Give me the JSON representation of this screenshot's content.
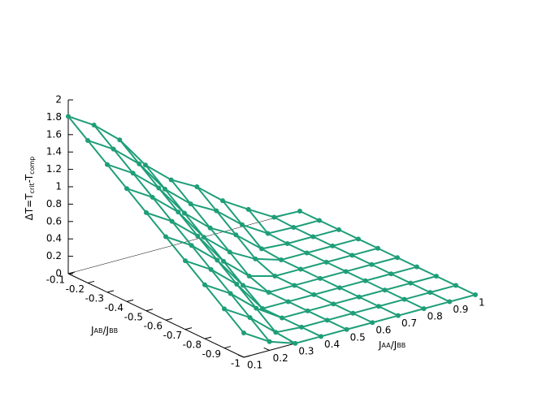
{
  "chart_data": {
    "type": "surface3d",
    "xlabel": [
      "J",
      "AA",
      "/J",
      "BB"
    ],
    "ylabel": [
      "J",
      "AB",
      "/J",
      "BB"
    ],
    "zlabel": [
      "ΔT=T",
      "crit",
      "-T",
      "comp"
    ],
    "color": "#1e9e78",
    "x": [
      0.1,
      0.2,
      0.3,
      0.4,
      0.5,
      0.6,
      0.7,
      0.8,
      0.9,
      1
    ],
    "y": [
      -0.1,
      -0.2,
      -0.3,
      -0.4,
      -0.5,
      -0.6,
      -0.7,
      -0.8,
      -0.9,
      -1
    ],
    "z": [
      [
        1.81,
        1.63,
        1.38,
        1.01,
        0.76,
        0.6,
        0.36,
        0.18,
        0.01,
        0
      ],
      [
        1.64,
        1.46,
        1.21,
        0.84,
        0.59,
        0.43,
        0.19,
        0.01,
        0,
        0
      ],
      [
        1.47,
        1.29,
        1.04,
        0.67,
        0.42,
        0.26,
        0.02,
        0,
        0,
        0
      ],
      [
        1.3,
        1.12,
        0.87,
        0.5,
        0.25,
        0.09,
        0,
        0,
        0,
        0
      ],
      [
        1.13,
        0.95,
        0.7,
        0.33,
        0.08,
        0,
        0,
        0,
        0,
        0
      ],
      [
        0.96,
        0.78,
        0.53,
        0.16,
        0,
        0,
        0,
        0,
        0,
        0
      ],
      [
        0.79,
        0.61,
        0.36,
        0,
        0,
        0,
        0,
        0,
        0,
        0
      ],
      [
        0.62,
        0.44,
        0.19,
        0,
        0,
        0,
        0,
        0,
        0,
        0
      ],
      [
        0.45,
        0.27,
        0.02,
        0,
        0,
        0,
        0,
        0,
        0,
        0
      ],
      [
        0.28,
        0.1,
        0,
        0,
        0,
        0,
        0,
        0,
        0,
        0
      ]
    ],
    "xlim": [
      0.1,
      1
    ],
    "ylim": [
      -0.1,
      -1
    ],
    "zlim": [
      0,
      2
    ],
    "xticks": [
      0.1,
      0.2,
      0.3,
      0.4,
      0.5,
      0.6,
      0.7,
      0.8,
      0.9,
      1
    ],
    "yticks": [
      -0.1,
      -0.2,
      -0.3,
      -0.4,
      -0.5,
      -0.6,
      -0.7,
      -0.8,
      -0.9,
      -1
    ],
    "zticks": [
      0,
      0.2,
      0.4,
      0.6,
      0.8,
      1,
      1.2,
      1.4,
      1.6,
      1.8,
      2
    ]
  }
}
